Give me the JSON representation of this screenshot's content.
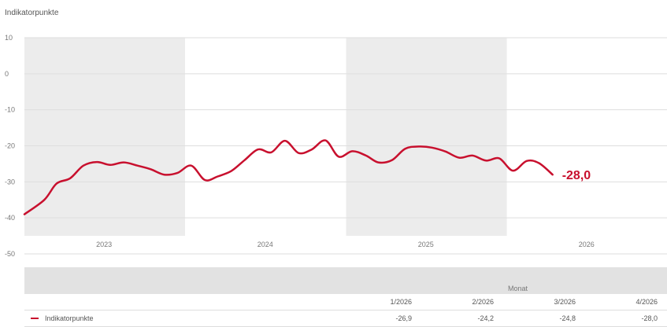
{
  "chart_data": {
    "type": "line",
    "ylabel": "Indikatorpunkte",
    "ylim": [
      -50,
      10
    ],
    "yticks": [
      10,
      0,
      -10,
      -20,
      -30,
      -40,
      -50
    ],
    "xlim": [
      "2023-01-01",
      "2026-12-31"
    ],
    "xtick_labels": [
      "2023",
      "2024",
      "2025",
      "2026"
    ],
    "shaded_years": [
      "2023",
      "2025"
    ],
    "grid": true,
    "line_color": "#c8102e",
    "end_label": "-28,0",
    "series": [
      {
        "name": "Indikatorpunkte",
        "x": [
          "2023-01",
          "2023-02",
          "2023-03",
          "2023-04",
          "2023-05",
          "2023-06",
          "2023-07",
          "2023-08",
          "2023-09",
          "2023-10",
          "2023-11",
          "2023-12",
          "2024-01",
          "2024-02",
          "2024-03",
          "2024-04",
          "2024-05",
          "2024-06",
          "2024-07",
          "2024-08",
          "2024-09",
          "2024-10",
          "2024-11",
          "2024-12",
          "2025-01",
          "2025-02",
          "2025-03",
          "2025-04",
          "2025-05",
          "2025-06",
          "2025-07",
          "2025-08",
          "2025-09",
          "2025-10",
          "2025-11",
          "2025-12",
          "2026-01",
          "2026-02",
          "2026-03",
          "2026-04"
        ],
        "values": [
          -39.0,
          -35.0,
          -30.5,
          -29.0,
          -25.5,
          -24.5,
          -25.3,
          -24.6,
          -25.5,
          -26.5,
          -28.0,
          -27.5,
          -25.5,
          -29.5,
          -28.5,
          -27.0,
          -24.0,
          -21.0,
          -21.8,
          -18.6,
          -22.0,
          -21.0,
          -18.5,
          -23.0,
          -21.5,
          -22.7,
          -24.6,
          -24.0,
          -20.8,
          -20.2,
          -20.5,
          -21.6,
          -23.3,
          -22.7,
          -24.1,
          -23.5,
          -26.9,
          -24.2,
          -24.8,
          -28.0
        ]
      }
    ]
  },
  "table": {
    "group_title": "Monat",
    "columns": [
      "1/2026",
      "2/2026",
      "3/2026",
      "4/2026"
    ],
    "rows": [
      {
        "label": "Indikatorpunkte",
        "values": [
          "-26,9",
          "-24,2",
          "-24,8",
          "-28,0"
        ]
      }
    ]
  }
}
